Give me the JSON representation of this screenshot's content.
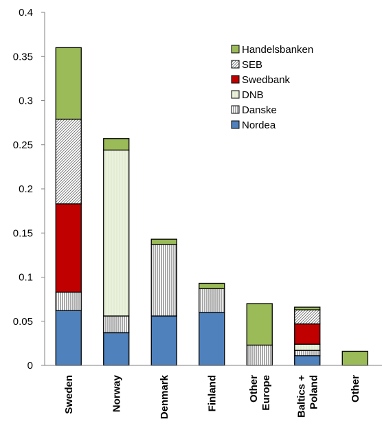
{
  "chart_data": {
    "type": "bar",
    "stacked": true,
    "categories": [
      [
        "Sweden"
      ],
      [
        "Norway"
      ],
      [
        "Denmark"
      ],
      [
        "Finland"
      ],
      [
        "Other",
        "Europe"
      ],
      [
        "Baltics +",
        "Poland"
      ],
      [
        "Other"
      ]
    ],
    "series": [
      {
        "name": "Nordea",
        "color": "#4f81bd",
        "pattern": "solid",
        "values": [
          0.062,
          0.037,
          0.056,
          0.06,
          0.0,
          0.011,
          0.0
        ]
      },
      {
        "name": "Danske",
        "color": "#ffffff",
        "pattern": "vertical",
        "values": [
          0.021,
          0.019,
          0.081,
          0.027,
          0.023,
          0.006,
          0.0
        ]
      },
      {
        "name": "DNB",
        "color": "#eaf1dd",
        "pattern": "dnb",
        "values": [
          0.0,
          0.188,
          0.0,
          0.0,
          0.0,
          0.007,
          0.0
        ]
      },
      {
        "name": "Swedbank",
        "color": "#c00000",
        "pattern": "solid",
        "values": [
          0.1,
          0.0,
          0.0,
          0.0,
          0.0,
          0.023,
          0.0
        ]
      },
      {
        "name": "SEB",
        "color": "#ffffff",
        "pattern": "diagonal",
        "values": [
          0.096,
          0.0,
          0.0,
          0.0,
          0.0,
          0.016,
          0.0
        ]
      },
      {
        "name": "Handelsbanken",
        "color": "#9bbb59",
        "pattern": "solid",
        "values": [
          0.081,
          0.013,
          0.006,
          0.006,
          0.047,
          0.003,
          0.016
        ]
      }
    ],
    "ylim": [
      0,
      0.4
    ],
    "yticks": [
      "0",
      "0.05",
      "0.1",
      "0.15",
      "0.2",
      "0.25",
      "0.3",
      "0.35",
      "0.4"
    ],
    "title": "",
    "xlabel": "",
    "ylabel": "",
    "legend": {
      "position": "top-right",
      "order": [
        "Handelsbanken",
        "SEB",
        "Swedbank",
        "DNB",
        "Danske",
        "Nordea"
      ]
    },
    "grid": false
  }
}
